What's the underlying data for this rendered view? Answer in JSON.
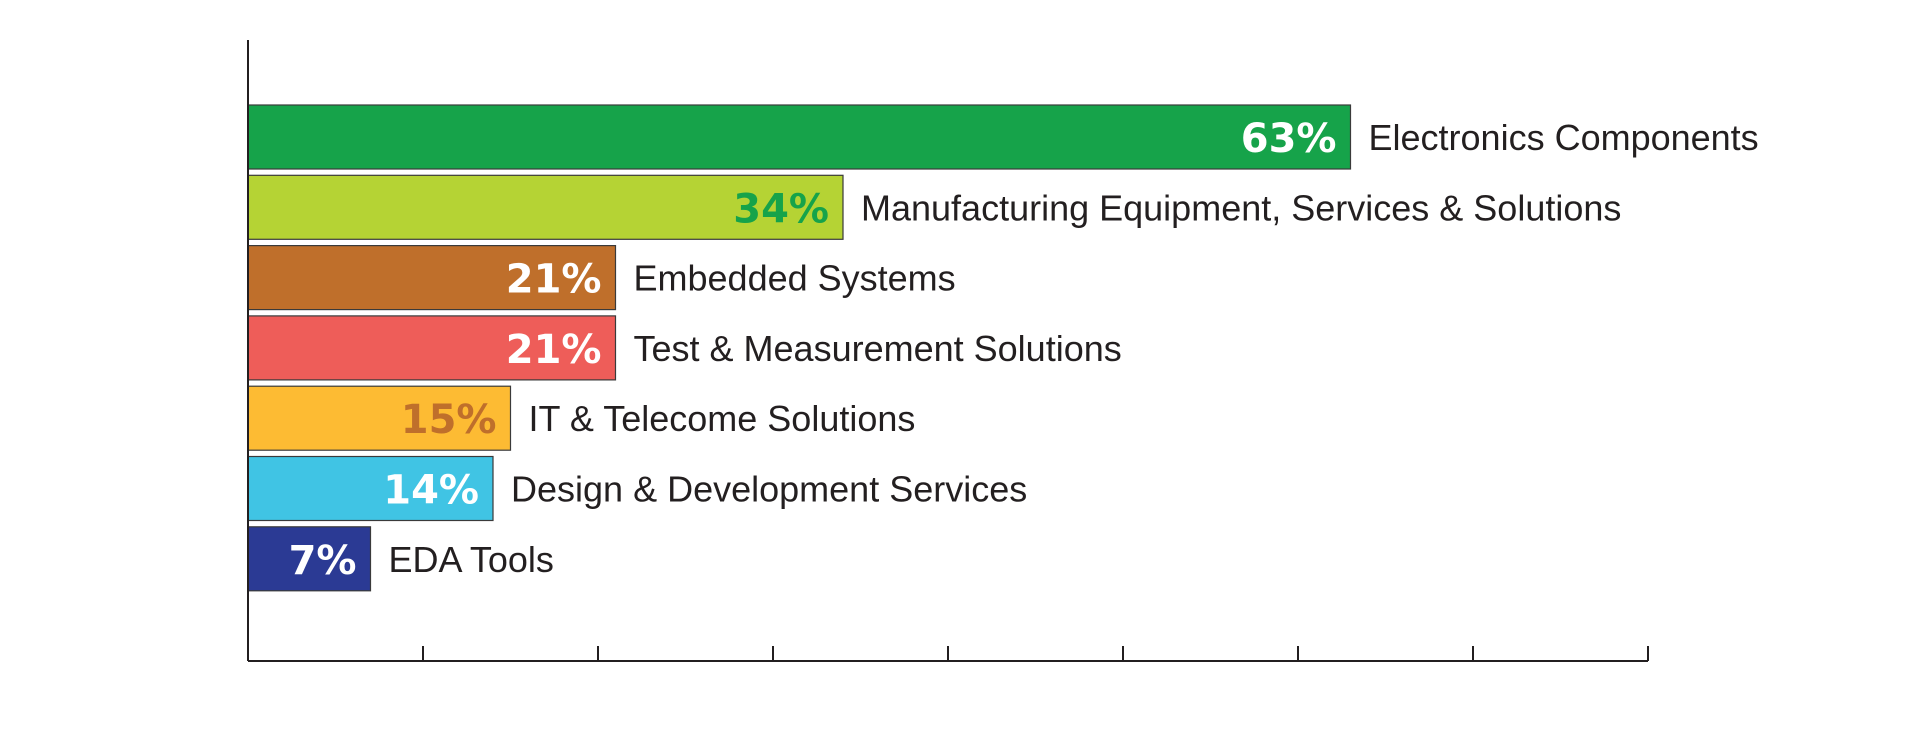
{
  "chart_data": {
    "type": "bar",
    "orientation": "horizontal",
    "title": "",
    "xlabel": "",
    "ylabel": "",
    "xlim": [
      0,
      80
    ],
    "x_tick_step": 10,
    "x_tick_labels_shown": false,
    "grid": false,
    "legend": "none",
    "categories": [
      "Electronics Components",
      "Manufacturing Equipment, Services & Solutions",
      "Embedded Systems",
      "Test & Measurement Solutions",
      "IT & Telecome Solutions",
      "Design & Development Services",
      "EDA Tools"
    ],
    "values": [
      63,
      34,
      21,
      21,
      15,
      14,
      7
    ],
    "value_labels": [
      "63%",
      "34%",
      "21%",
      "21%",
      "15%",
      "14%",
      "7%"
    ],
    "bar_colors": [
      "#16a34a",
      "#b5d334",
      "#bf6f2b",
      "#ee5d59",
      "#fdbb33",
      "#40c4e4",
      "#2b3a94"
    ],
    "value_label_colors": [
      "#ffffff",
      "#16a34a",
      "#ffffff",
      "#ffffff",
      "#bf6f2b",
      "#ffffff",
      "#ffffff"
    ]
  }
}
